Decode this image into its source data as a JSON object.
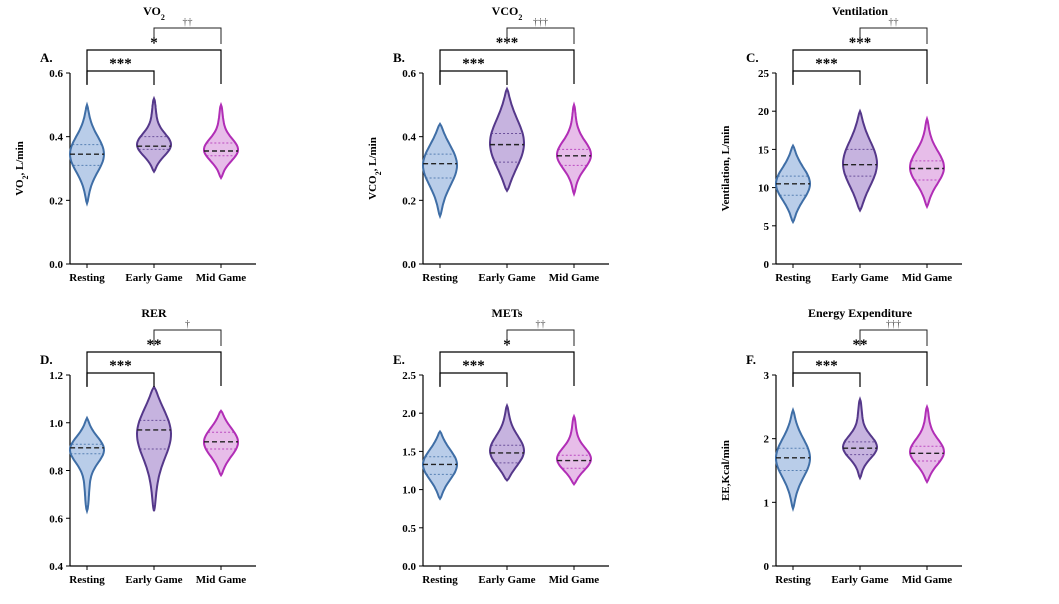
{
  "colors": {
    "Resting": {
      "fill": "#b9cde9",
      "stroke": "#3f6ea6"
    },
    "Early Game": {
      "fill": "#c6b3df",
      "stroke": "#55388a"
    },
    "Mid Game": {
      "fill": "#e7bde9",
      "stroke": "#b12eb6"
    }
  },
  "chart_data": [
    {
      "type": "violin",
      "panel": "A.",
      "title": "VO",
      "title_sub": "2",
      "ylabel": "VO",
      "ylabel_sub": "2",
      "ylabel_rest": ", L/min",
      "categories": [
        "Resting",
        "Early Game",
        "Mid Game"
      ],
      "ylim": [
        0,
        0.6
      ],
      "yticks": [
        "0.0",
        "0.2",
        "0.4",
        "0.6"
      ],
      "series": [
        {
          "name": "Resting",
          "min": 0.19,
          "max": 0.5,
          "median": 0.345,
          "q1": 0.31,
          "q3": 0.375
        },
        {
          "name": "Early Game",
          "min": 0.29,
          "max": 0.52,
          "median": 0.37,
          "q1": 0.36,
          "q3": 0.4
        },
        {
          "name": "Mid Game",
          "min": 0.27,
          "max": 0.5,
          "median": 0.355,
          "q1": 0.34,
          "q3": 0.38
        }
      ],
      "comparisons": [
        {
          "from": "Resting",
          "to": "Early Game",
          "label": "***",
          "type": "sig"
        },
        {
          "from": "Resting",
          "to": "Mid Game",
          "label": "*",
          "type": "sig"
        },
        {
          "from": "Early Game",
          "to": "Mid Game",
          "label": "††",
          "type": "dagger"
        }
      ]
    },
    {
      "type": "violin",
      "panel": "B.",
      "title": "VCO",
      "title_sub": "2",
      "ylabel": "VCO",
      "ylabel_sub": "2",
      "ylabel_rest": ", L/min",
      "categories": [
        "Resting",
        "Early Game",
        "Mid Game"
      ],
      "ylim": [
        0,
        0.6
      ],
      "yticks": [
        "0.0",
        "0.2",
        "0.4",
        "0.6"
      ],
      "series": [
        {
          "name": "Resting",
          "min": 0.15,
          "max": 0.44,
          "median": 0.315,
          "q1": 0.27,
          "q3": 0.345
        },
        {
          "name": "Early Game",
          "min": 0.23,
          "max": 0.55,
          "median": 0.375,
          "q1": 0.32,
          "q3": 0.41
        },
        {
          "name": "Mid Game",
          "min": 0.22,
          "max": 0.5,
          "median": 0.34,
          "q1": 0.31,
          "q3": 0.36
        }
      ],
      "comparisons": [
        {
          "from": "Resting",
          "to": "Early Game",
          "label": "***",
          "type": "sig"
        },
        {
          "from": "Resting",
          "to": "Mid Game",
          "label": "***",
          "type": "sig"
        },
        {
          "from": "Early Game",
          "to": "Mid Game",
          "label": "†††",
          "type": "dagger"
        }
      ]
    },
    {
      "type": "violin",
      "panel": "C.",
      "title": "Ventilation",
      "ylabel": "Ventilation, L/min",
      "categories": [
        "Resting",
        "Early Game",
        "Mid Game"
      ],
      "ylim": [
        0,
        25
      ],
      "yticks": [
        "0",
        "5",
        "10",
        "15",
        "20",
        "25"
      ],
      "series": [
        {
          "name": "Resting",
          "min": 5.5,
          "max": 15.5,
          "median": 10.5,
          "q1": 9,
          "q3": 11.5
        },
        {
          "name": "Early Game",
          "min": 7,
          "max": 20,
          "median": 13,
          "q1": 11.5,
          "q3": 15
        },
        {
          "name": "Mid Game",
          "min": 7.5,
          "max": 19,
          "median": 12.5,
          "q1": 11,
          "q3": 13.5
        }
      ],
      "comparisons": [
        {
          "from": "Resting",
          "to": "Early Game",
          "label": "***",
          "type": "sig"
        },
        {
          "from": "Resting",
          "to": "Mid Game",
          "label": "***",
          "type": "sig"
        },
        {
          "from": "Early Game",
          "to": "Mid Game",
          "label": "††",
          "type": "dagger"
        }
      ]
    },
    {
      "type": "violin",
      "panel": "D.",
      "title": "RER",
      "ylabel": "",
      "categories": [
        "Resting",
        "Early Game",
        "Mid Game"
      ],
      "ylim": [
        0.4,
        1.2
      ],
      "yticks": [
        "0.4",
        "0.6",
        "0.8",
        "1.0",
        "1.2"
      ],
      "series": [
        {
          "name": "Resting",
          "min": 0.63,
          "max": 1.02,
          "median": 0.895,
          "q1": 0.87,
          "q3": 0.91
        },
        {
          "name": "Early Game",
          "min": 0.63,
          "max": 1.15,
          "median": 0.97,
          "q1": 0.89,
          "q3": 1.01
        },
        {
          "name": "Mid Game",
          "min": 0.78,
          "max": 1.05,
          "median": 0.92,
          "q1": 0.89,
          "q3": 0.96
        }
      ],
      "comparisons": [
        {
          "from": "Resting",
          "to": "Early Game",
          "label": "***",
          "type": "sig"
        },
        {
          "from": "Resting",
          "to": "Mid Game",
          "label": "**",
          "type": "sig"
        },
        {
          "from": "Early Game",
          "to": "Mid Game",
          "label": "†",
          "type": "dagger"
        }
      ]
    },
    {
      "type": "violin",
      "panel": "E.",
      "title": "METs",
      "ylabel": "",
      "categories": [
        "Resting",
        "Early Game",
        "Mid Game"
      ],
      "ylim": [
        0,
        2.5
      ],
      "yticks": [
        "0.0",
        "0.5",
        "1.0",
        "1.5",
        "2.0",
        "2.5"
      ],
      "series": [
        {
          "name": "Resting",
          "min": 0.88,
          "max": 1.76,
          "median": 1.33,
          "q1": 1.2,
          "q3": 1.43
        },
        {
          "name": "Early Game",
          "min": 1.12,
          "max": 2.1,
          "median": 1.48,
          "q1": 1.35,
          "q3": 1.58
        },
        {
          "name": "Mid Game",
          "min": 1.07,
          "max": 1.96,
          "median": 1.38,
          "q1": 1.28,
          "q3": 1.45
        }
      ],
      "comparisons": [
        {
          "from": "Resting",
          "to": "Early Game",
          "label": "***",
          "type": "sig"
        },
        {
          "from": "Resting",
          "to": "Mid Game",
          "label": "*",
          "type": "sig"
        },
        {
          "from": "Early Game",
          "to": "Mid Game",
          "label": "††",
          "type": "dagger"
        }
      ]
    },
    {
      "type": "violin",
      "panel": "F.",
      "title": "Energy Expenditure",
      "ylabel": "EE,Kcal/min",
      "categories": [
        "Resting",
        "Early Game",
        "Mid Game"
      ],
      "ylim": [
        0,
        3
      ],
      "yticks": [
        "0",
        "1",
        "2",
        "3"
      ],
      "series": [
        {
          "name": "Resting",
          "min": 0.9,
          "max": 2.45,
          "median": 1.7,
          "q1": 1.5,
          "q3": 1.85
        },
        {
          "name": "Early Game",
          "min": 1.38,
          "max": 2.62,
          "median": 1.85,
          "q1": 1.75,
          "q3": 1.95
        },
        {
          "name": "Mid Game",
          "min": 1.32,
          "max": 2.5,
          "median": 1.77,
          "q1": 1.65,
          "q3": 1.88
        }
      ],
      "comparisons": [
        {
          "from": "Resting",
          "to": "Early Game",
          "label": "***",
          "type": "sig"
        },
        {
          "from": "Resting",
          "to": "Mid Game",
          "label": "**",
          "type": "sig"
        },
        {
          "from": "Early Game",
          "to": "Mid Game",
          "label": "†††",
          "type": "dagger"
        }
      ]
    }
  ]
}
